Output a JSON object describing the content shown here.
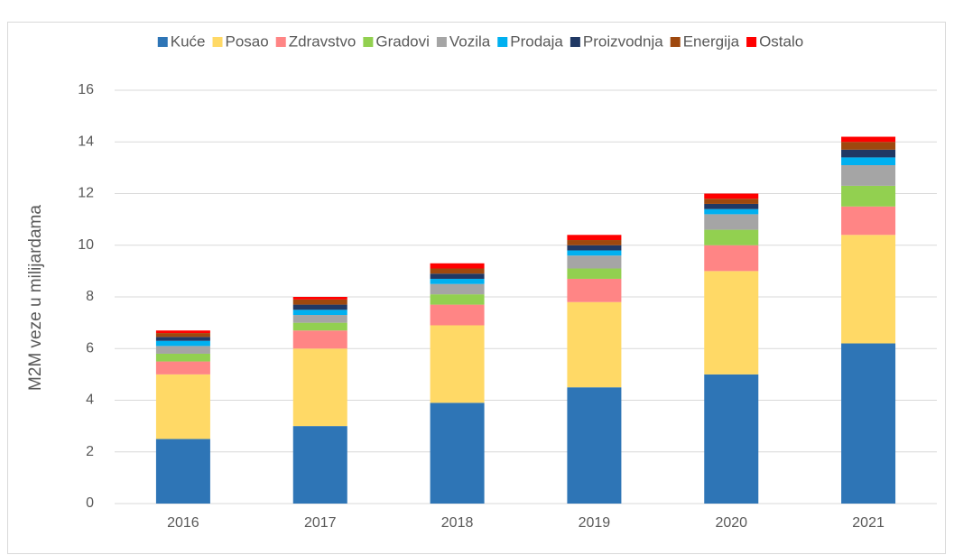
{
  "chart_data": {
    "type": "stacked_bar",
    "ylabel": "M2M veze u milijardama",
    "categories": [
      "2016",
      "2017",
      "2018",
      "2019",
      "2020",
      "2021"
    ],
    "series": [
      {
        "name": "Kuće",
        "color": "#2e75b6",
        "values": [
          2.5,
          3.0,
          3.9,
          4.5,
          5.0,
          6.2
        ]
      },
      {
        "name": "Posao",
        "color": "#ffd966",
        "values": [
          2.5,
          3.0,
          3.0,
          3.3,
          4.0,
          4.2
        ]
      },
      {
        "name": "Zdravstvo",
        "color": "#ff8585",
        "values": [
          0.5,
          0.7,
          0.8,
          0.9,
          1.0,
          1.1
        ]
      },
      {
        "name": "Gradovi",
        "color": "#92d050",
        "values": [
          0.3,
          0.3,
          0.4,
          0.4,
          0.6,
          0.8
        ]
      },
      {
        "name": "Vozila",
        "color": "#a5a5a5",
        "values": [
          0.3,
          0.3,
          0.4,
          0.5,
          0.6,
          0.8
        ]
      },
      {
        "name": "Prodaja",
        "color": "#00b0f0",
        "values": [
          0.2,
          0.2,
          0.2,
          0.2,
          0.2,
          0.3
        ]
      },
      {
        "name": "Proizvodnja",
        "color": "#203864",
        "values": [
          0.15,
          0.2,
          0.2,
          0.2,
          0.2,
          0.3
        ]
      },
      {
        "name": "Energija",
        "color": "#9e480e",
        "values": [
          0.15,
          0.2,
          0.2,
          0.2,
          0.2,
          0.3
        ]
      },
      {
        "name": "Ostalo",
        "color": "#ff0000",
        "values": [
          0.1,
          0.1,
          0.2,
          0.2,
          0.2,
          0.2
        ]
      }
    ],
    "ylim": [
      0,
      16
    ],
    "yticks": [
      0,
      2,
      4,
      6,
      8,
      10,
      12,
      14,
      16
    ],
    "grid": true,
    "legend": "top"
  }
}
